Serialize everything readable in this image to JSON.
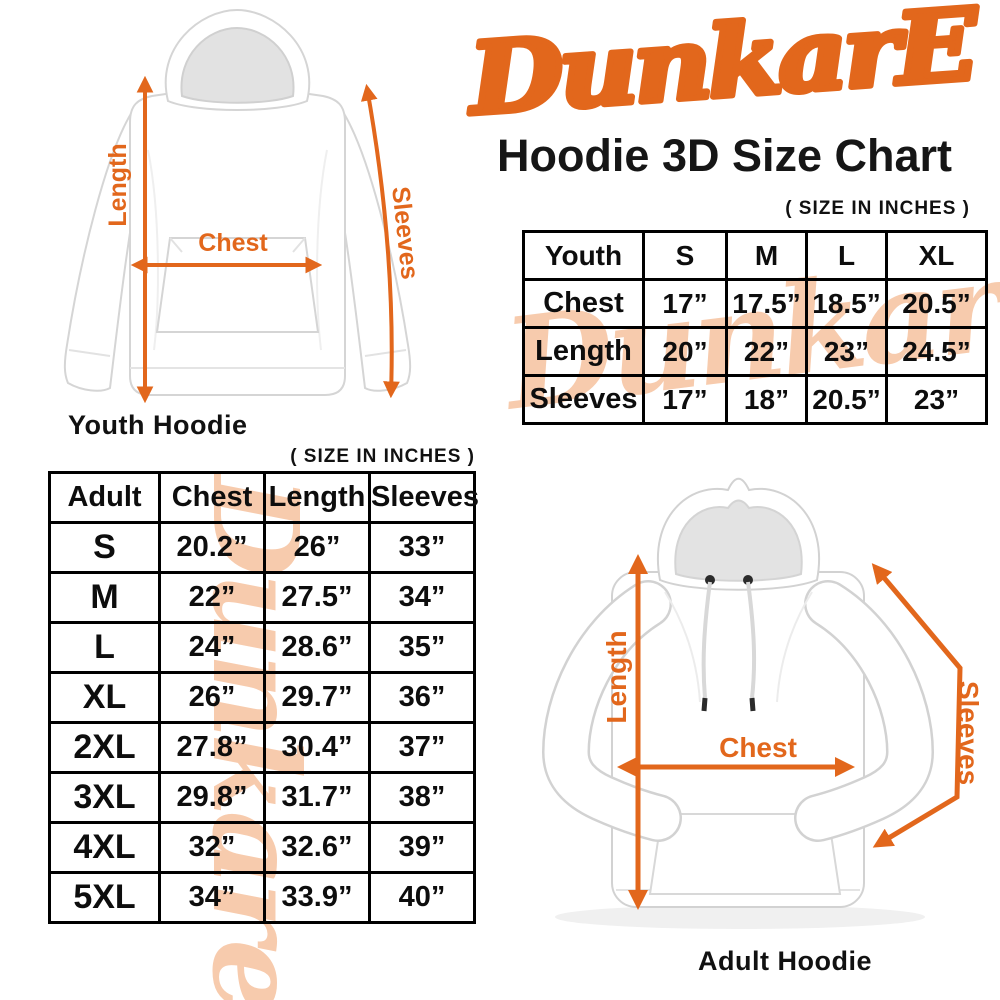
{
  "brand": {
    "logo_text": "DunkarE",
    "watermark_text": "Dunkare",
    "accent_color": "#E2671C",
    "watermark_color": "#F7CBAD"
  },
  "header": {
    "title": "Hoodie 3D Size Chart"
  },
  "youth_section": {
    "size_note": "( SIZE IN INCHES )",
    "figure_caption": "Youth Hoodie",
    "measure_labels": {
      "length": "Length",
      "chest": "Chest",
      "sleeves": "Sleeves"
    }
  },
  "adult_section": {
    "size_note": "( SIZE IN INCHES )",
    "figure_caption": "Adult Hoodie",
    "measure_labels": {
      "length": "Length",
      "chest": "Chest",
      "sleeves": "Sleeves"
    }
  },
  "chart_data": [
    {
      "type": "table",
      "name": "youth-size-table",
      "units": "inches",
      "orientation": "sizes-as-columns",
      "columns": [
        "Youth",
        "S",
        "M",
        "L",
        "XL"
      ],
      "rows": [
        {
          "label": "Chest",
          "values": [
            "17”",
            "17.5”",
            "18.5”",
            "20.5”"
          ]
        },
        {
          "label": "Length",
          "values": [
            "20”",
            "22”",
            "23”",
            "24.5”"
          ]
        },
        {
          "label": "Sleeves",
          "values": [
            "17”",
            "18”",
            "20.5”",
            "23”"
          ]
        }
      ]
    },
    {
      "type": "table",
      "name": "adult-size-table",
      "units": "inches",
      "orientation": "sizes-as-rows",
      "columns": [
        "Adult",
        "Chest",
        "Length",
        "Sleeves"
      ],
      "rows": [
        {
          "label": "S",
          "values": [
            "20.2”",
            "26”",
            "33”"
          ]
        },
        {
          "label": "M",
          "values": [
            "22”",
            "27.5”",
            "34”"
          ]
        },
        {
          "label": "L",
          "values": [
            "24”",
            "28.6”",
            "35”"
          ]
        },
        {
          "label": "XL",
          "values": [
            "26”",
            "29.7”",
            "36”"
          ]
        },
        {
          "label": "2XL",
          "values": [
            "27.8”",
            "30.4”",
            "37”"
          ]
        },
        {
          "label": "3XL",
          "values": [
            "29.8”",
            "31.7”",
            "38”"
          ]
        },
        {
          "label": "4XL",
          "values": [
            "32”",
            "32.6”",
            "39”"
          ]
        },
        {
          "label": "5XL",
          "values": [
            "34”",
            "33.9”",
            "40”"
          ]
        }
      ]
    }
  ]
}
